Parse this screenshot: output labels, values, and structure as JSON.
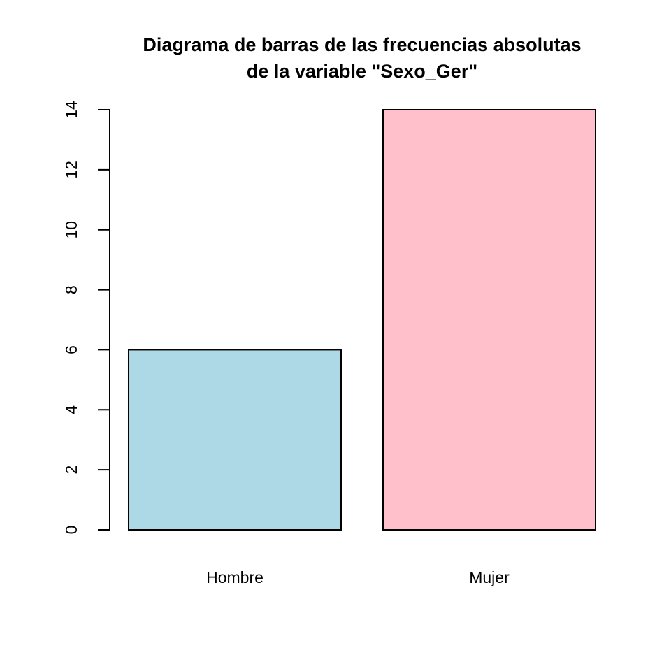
{
  "chart_data": {
    "type": "bar",
    "title_lines": [
      "Diagrama de barras de las frecuencias absolutas",
      "de la variable \"Sexo_Ger\""
    ],
    "categories": [
      "Hombre",
      "Mujer"
    ],
    "values": [
      6,
      14
    ],
    "bar_colors": [
      "#add8e6",
      "#ffc0cb"
    ],
    "border_color": "#000000",
    "ylim": [
      0,
      14
    ],
    "yticks": [
      0,
      2,
      4,
      6,
      8,
      10,
      12,
      14
    ],
    "xlabel": "",
    "ylabel": "",
    "grid": false,
    "legend": "none"
  }
}
